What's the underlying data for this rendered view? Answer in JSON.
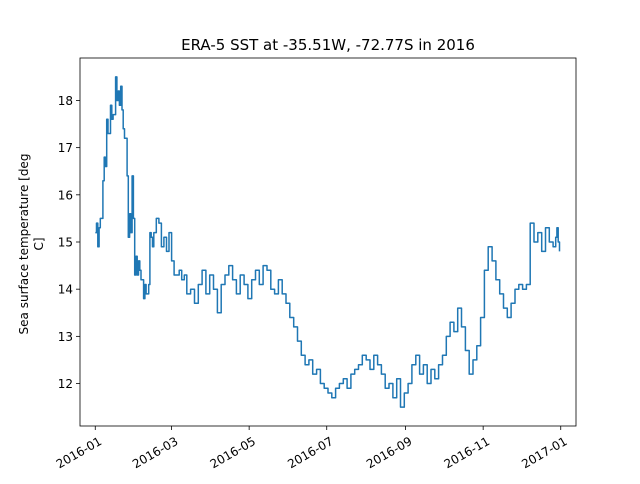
{
  "chart_data": {
    "type": "line",
    "title": "ERA-5 SST at -35.51W, -72.77S in 2016",
    "xlabel": "",
    "ylabel": "Sea surface temperature [deg C]",
    "ylabel_lines": [
      "Sea surface temperature [deg",
      "C]"
    ],
    "xlim": [
      "2015-12-20",
      "2017-01-13"
    ],
    "ylim": [
      11.1,
      18.9
    ],
    "x_ticks": [
      "2016-01",
      "2016-03",
      "2016-05",
      "2016-07",
      "2016-09",
      "2016-11",
      "2017-01"
    ],
    "y_ticks": [
      12,
      13,
      14,
      15,
      16,
      17,
      18
    ],
    "grid": false,
    "series_color": "#1f77b4",
    "series": [
      {
        "name": "",
        "x": [
          "2016-01-01",
          "2016-01-02",
          "2016-01-03",
          "2016-01-04",
          "2016-01-05",
          "2016-01-07",
          "2016-01-08",
          "2016-01-09",
          "2016-01-10",
          "2016-01-11",
          "2016-01-13",
          "2016-01-14",
          "2016-01-15",
          "2016-01-17",
          "2016-01-18",
          "2016-01-19",
          "2016-01-20",
          "2016-01-21",
          "2016-01-22",
          "2016-01-23",
          "2016-01-24",
          "2016-01-26",
          "2016-01-27",
          "2016-01-28",
          "2016-01-29",
          "2016-01-30",
          "2016-01-31",
          "2016-02-01",
          "2016-02-02",
          "2016-02-03",
          "2016-02-04",
          "2016-02-05",
          "2016-02-06",
          "2016-02-08",
          "2016-02-09",
          "2016-02-10",
          "2016-02-12",
          "2016-02-13",
          "2016-02-14",
          "2016-02-15",
          "2016-02-16",
          "2016-02-18",
          "2016-02-20",
          "2016-02-22",
          "2016-02-24",
          "2016-02-26",
          "2016-02-28",
          "2016-03-01",
          "2016-03-03",
          "2016-03-05",
          "2016-03-07",
          "2016-03-09",
          "2016-03-11",
          "2016-03-13",
          "2016-03-16",
          "2016-03-19",
          "2016-03-22",
          "2016-03-25",
          "2016-03-28",
          "2016-03-31",
          "2016-04-03",
          "2016-04-06",
          "2016-04-09",
          "2016-04-12",
          "2016-04-15",
          "2016-04-18",
          "2016-04-21",
          "2016-04-24",
          "2016-04-27",
          "2016-04-30",
          "2016-05-03",
          "2016-05-06",
          "2016-05-09",
          "2016-05-12",
          "2016-05-15",
          "2016-05-18",
          "2016-05-21",
          "2016-05-24",
          "2016-05-27",
          "2016-05-30",
          "2016-06-02",
          "2016-06-05",
          "2016-06-08",
          "2016-06-11",
          "2016-06-14",
          "2016-06-17",
          "2016-06-20",
          "2016-06-23",
          "2016-06-26",
          "2016-06-29",
          "2016-07-02",
          "2016-07-05",
          "2016-07-08",
          "2016-07-11",
          "2016-07-14",
          "2016-07-17",
          "2016-07-20",
          "2016-07-23",
          "2016-07-26",
          "2016-07-29",
          "2016-08-01",
          "2016-08-04",
          "2016-08-07",
          "2016-08-10",
          "2016-08-13",
          "2016-08-16",
          "2016-08-19",
          "2016-08-22",
          "2016-08-25",
          "2016-08-28",
          "2016-08-31",
          "2016-09-03",
          "2016-09-06",
          "2016-09-09",
          "2016-09-12",
          "2016-09-15",
          "2016-09-18",
          "2016-09-21",
          "2016-09-24",
          "2016-09-27",
          "2016-09-30",
          "2016-10-03",
          "2016-10-06",
          "2016-10-09",
          "2016-10-12",
          "2016-10-15",
          "2016-10-18",
          "2016-10-21",
          "2016-10-24",
          "2016-10-27",
          "2016-10-30",
          "2016-11-02",
          "2016-11-05",
          "2016-11-08",
          "2016-11-11",
          "2016-11-14",
          "2016-11-17",
          "2016-11-20",
          "2016-11-23",
          "2016-11-26",
          "2016-11-29",
          "2016-12-02",
          "2016-12-05",
          "2016-12-08",
          "2016-12-11",
          "2016-12-14",
          "2016-12-17",
          "2016-12-20",
          "2016-12-23",
          "2016-12-26",
          "2016-12-28",
          "2016-12-29",
          "2016-12-30",
          "2016-12-31"
        ],
        "values": [
          15.2,
          15.4,
          14.9,
          15.3,
          15.5,
          16.3,
          16.8,
          16.6,
          17.6,
          17.3,
          17.9,
          17.6,
          17.7,
          18.5,
          18.0,
          18.2,
          17.9,
          18.3,
          17.8,
          17.4,
          17.2,
          16.4,
          15.1,
          15.6,
          15.2,
          16.4,
          15.5,
          14.3,
          14.7,
          14.3,
          14.6,
          14.4,
          14.2,
          13.8,
          14.1,
          13.9,
          14.1,
          15.2,
          15.1,
          14.9,
          15.2,
          15.5,
          15.4,
          14.9,
          15.1,
          14.8,
          15.2,
          14.6,
          14.3,
          14.3,
          14.4,
          14.2,
          14.3,
          13.9,
          14.0,
          13.7,
          14.1,
          14.4,
          13.9,
          14.3,
          14.0,
          13.5,
          14.1,
          14.3,
          14.5,
          14.2,
          13.9,
          14.3,
          14.1,
          13.8,
          14.2,
          14.4,
          14.1,
          14.5,
          14.4,
          14.0,
          13.9,
          14.2,
          13.9,
          13.7,
          13.4,
          13.2,
          12.9,
          12.6,
          12.4,
          12.5,
          12.2,
          12.3,
          12.0,
          11.9,
          11.8,
          11.7,
          11.9,
          12.0,
          12.1,
          11.9,
          12.2,
          12.3,
          12.4,
          12.6,
          12.5,
          12.3,
          12.6,
          12.4,
          12.2,
          11.9,
          12.0,
          11.7,
          12.1,
          11.5,
          11.8,
          12.0,
          12.4,
          12.6,
          12.2,
          12.4,
          12.0,
          12.3,
          12.1,
          12.4,
          12.6,
          13.0,
          13.3,
          13.1,
          13.6,
          13.2,
          12.7,
          12.2,
          12.5,
          12.8,
          13.4,
          14.4,
          14.9,
          14.6,
          14.2,
          13.9,
          13.6,
          13.4,
          13.7,
          14.0,
          14.1,
          14.0,
          14.1,
          15.4,
          15.0,
          15.2,
          14.8,
          15.3,
          15.0,
          14.9,
          15.1,
          15.3,
          15.0,
          14.8
        ]
      }
    ]
  }
}
